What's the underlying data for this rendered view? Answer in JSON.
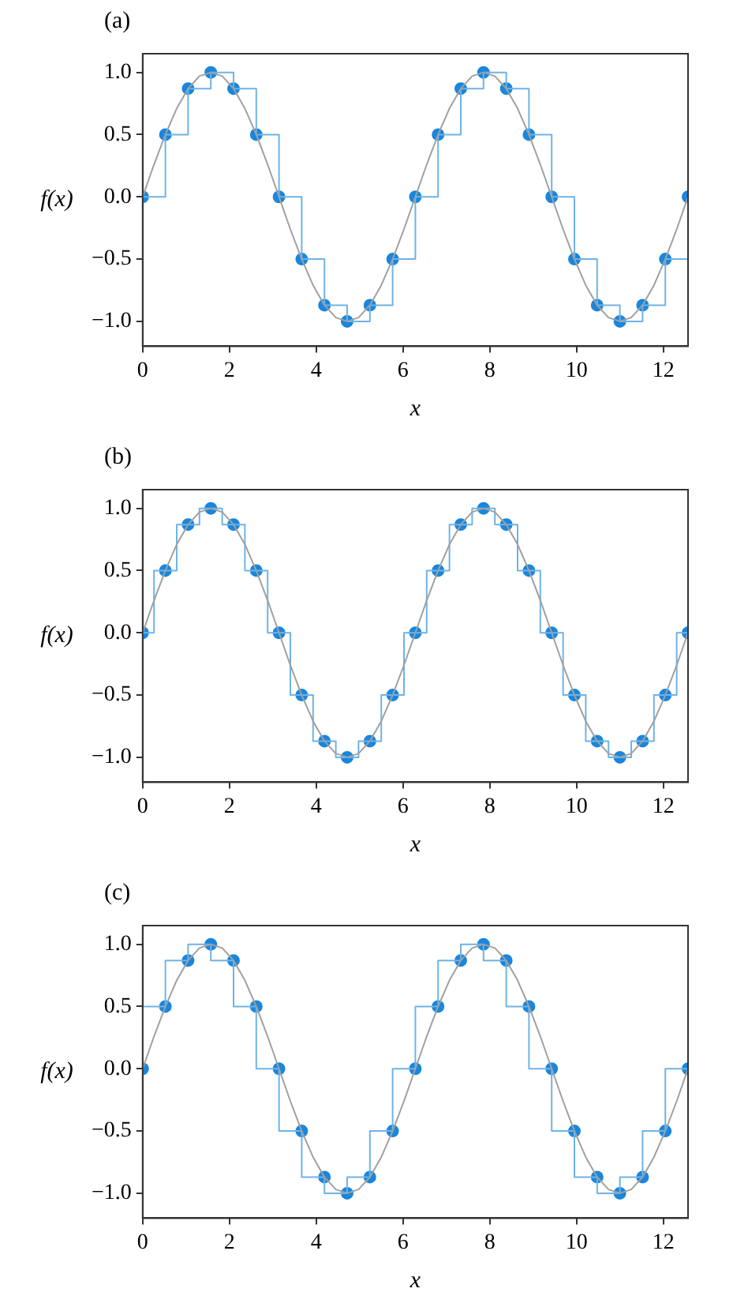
{
  "chart_data": [
    {
      "type": "step",
      "title": "(a)",
      "xlabel": "x",
      "ylabel": "f(x)",
      "xlim": [
        0,
        12.566
      ],
      "ylim": [
        -1.2,
        1.15
      ],
      "xticks": [
        0,
        2,
        4,
        6,
        8,
        10,
        12
      ],
      "yticks": [
        {
          "value": -1,
          "label": "−1.0"
        },
        {
          "value": -0.5,
          "label": "−0.5"
        },
        {
          "value": 0,
          "label": "0.0"
        },
        {
          "value": 0.5,
          "label": "0.5"
        },
        {
          "value": 1,
          "label": "1.0"
        }
      ],
      "grid": false,
      "legend": false,
      "series": [
        {
          "type": "line",
          "color": "#a0a0a0",
          "x": [
            0,
            0.262,
            0.524,
            0.785,
            1.047,
            1.309,
            1.571,
            1.833,
            2.094,
            2.356,
            2.618,
            2.88,
            3.142,
            3.403,
            3.665,
            3.927,
            4.189,
            4.451,
            4.712,
            4.974,
            5.236,
            5.498,
            5.76,
            6.021,
            6.283,
            6.545,
            6.807,
            7.069,
            7.33,
            7.592,
            7.854,
            8.116,
            8.378,
            8.639,
            8.901,
            9.163,
            9.425,
            9.687,
            9.948,
            10.21,
            10.472,
            10.734,
            10.996,
            11.257,
            11.519,
            11.781,
            12.043,
            12.305,
            12.566
          ],
          "values": [
            0,
            0.26,
            0.5,
            0.71,
            0.87,
            0.97,
            1,
            0.97,
            0.87,
            0.71,
            0.5,
            0.26,
            0,
            -0.26,
            -0.5,
            -0.71,
            -0.87,
            -0.97,
            -1,
            -0.97,
            -0.87,
            -0.71,
            -0.5,
            -0.26,
            0,
            0.26,
            0.5,
            0.71,
            0.87,
            0.97,
            1,
            0.97,
            0.87,
            0.71,
            0.5,
            0.26,
            0,
            -0.26,
            -0.5,
            -0.71,
            -0.87,
            -0.97,
            -1,
            -0.97,
            -0.87,
            -0.71,
            -0.5,
            -0.26,
            0
          ]
        },
        {
          "color": "#6fb3e6",
          "x": [
            0,
            0.524,
            1.047,
            1.571,
            2.094,
            2.618,
            3.142,
            3.665,
            4.189,
            4.712,
            5.236,
            5.76,
            6.283,
            6.807,
            7.33,
            7.854,
            8.378,
            8.901,
            9.425,
            9.948,
            10.472,
            10.996,
            11.519,
            12.043,
            12.566
          ],
          "values": [
            0,
            0.5,
            0.87,
            1,
            0.87,
            0.5,
            0,
            -0.5,
            -0.87,
            -1,
            -0.87,
            -0.5,
            0,
            0.5,
            0.87,
            1,
            0.87,
            0.5,
            0,
            -0.5,
            -0.87,
            -1,
            -0.87,
            -0.5,
            0
          ]
        },
        {
          "type": "scatter",
          "marker": "circle",
          "color": "#1a86dc",
          "x": [
            0,
            0.524,
            1.047,
            1.571,
            2.094,
            2.618,
            3.142,
            3.665,
            4.189,
            4.712,
            5.236,
            5.76,
            6.283,
            6.807,
            7.33,
            7.854,
            8.378,
            8.901,
            9.425,
            9.948,
            10.472,
            10.996,
            11.519,
            12.043,
            12.566
          ],
          "values": [
            0,
            0.5,
            0.87,
            1,
            0.87,
            0.5,
            0,
            -0.5,
            -0.87,
            -1,
            -0.87,
            -0.5,
            0,
            0.5,
            0.87,
            1,
            0.87,
            0.5,
            0,
            -0.5,
            -0.87,
            -1,
            -0.87,
            -0.5,
            0
          ]
        }
      ]
    },
    {
      "type": "step",
      "title": "(b)",
      "xlabel": "x",
      "ylabel": "f(x)",
      "xlim": [
        0,
        12.566
      ],
      "ylim": [
        -1.2,
        1.15
      ],
      "xticks": [
        0,
        2,
        4,
        6,
        8,
        10,
        12
      ],
      "yticks": [
        {
          "value": -1,
          "label": "−1.0"
        },
        {
          "value": -0.5,
          "label": "−0.5"
        },
        {
          "value": 0,
          "label": "0.0"
        },
        {
          "value": 0.5,
          "label": "0.5"
        },
        {
          "value": 1,
          "label": "1.0"
        }
      ],
      "grid": false,
      "legend": false,
      "series": [
        {
          "type": "line",
          "color": "#a0a0a0",
          "x": [
            0,
            0.262,
            0.524,
            0.785,
            1.047,
            1.309,
            1.571,
            1.833,
            2.094,
            2.356,
            2.618,
            2.88,
            3.142,
            3.403,
            3.665,
            3.927,
            4.189,
            4.451,
            4.712,
            4.974,
            5.236,
            5.498,
            5.76,
            6.021,
            6.283,
            6.545,
            6.807,
            7.069,
            7.33,
            7.592,
            7.854,
            8.116,
            8.378,
            8.639,
            8.901,
            9.163,
            9.425,
            9.687,
            9.948,
            10.21,
            10.472,
            10.734,
            10.996,
            11.257,
            11.519,
            11.781,
            12.043,
            12.305,
            12.566
          ],
          "values": [
            0,
            0.26,
            0.5,
            0.71,
            0.87,
            0.97,
            1,
            0.97,
            0.87,
            0.71,
            0.5,
            0.26,
            0,
            -0.26,
            -0.5,
            -0.71,
            -0.87,
            -0.97,
            -1,
            -0.97,
            -0.87,
            -0.71,
            -0.5,
            -0.26,
            0,
            0.26,
            0.5,
            0.71,
            0.87,
            0.97,
            1,
            0.97,
            0.87,
            0.71,
            0.5,
            0.26,
            0,
            -0.26,
            -0.5,
            -0.71,
            -0.87,
            -0.97,
            -1,
            -0.97,
            -0.87,
            -0.71,
            -0.5,
            -0.26,
            0
          ]
        },
        {
          "color": "#6fb3e6",
          "x": [
            0,
            0.262,
            0.785,
            1.309,
            1.833,
            2.356,
            2.88,
            3.403,
            3.927,
            4.451,
            4.974,
            5.498,
            6.021,
            6.545,
            7.069,
            7.592,
            8.116,
            8.639,
            9.163,
            9.687,
            10.21,
            10.734,
            11.257,
            11.781,
            12.305,
            12.566
          ],
          "values": [
            0,
            0.5,
            0.87,
            1,
            0.87,
            0.5,
            0,
            -0.5,
            -0.87,
            -1,
            -0.87,
            -0.5,
            0,
            0.5,
            0.87,
            1,
            0.87,
            0.5,
            0,
            -0.5,
            -0.87,
            -1,
            -0.87,
            -0.5,
            0,
            0
          ]
        },
        {
          "type": "scatter",
          "marker": "circle",
          "color": "#1a86dc",
          "x": [
            0,
            0.524,
            1.047,
            1.571,
            2.094,
            2.618,
            3.142,
            3.665,
            4.189,
            4.712,
            5.236,
            5.76,
            6.283,
            6.807,
            7.33,
            7.854,
            8.378,
            8.901,
            9.425,
            9.948,
            10.472,
            10.996,
            11.519,
            12.043,
            12.566
          ],
          "values": [
            0,
            0.5,
            0.87,
            1,
            0.87,
            0.5,
            0,
            -0.5,
            -0.87,
            -1,
            -0.87,
            -0.5,
            0,
            0.5,
            0.87,
            1,
            0.87,
            0.5,
            0,
            -0.5,
            -0.87,
            -1,
            -0.87,
            -0.5,
            0
          ]
        }
      ]
    },
    {
      "type": "step",
      "title": "(c)",
      "xlabel": "x",
      "ylabel": "f(x)",
      "xlim": [
        0,
        12.566
      ],
      "ylim": [
        -1.2,
        1.15
      ],
      "xticks": [
        0,
        2,
        4,
        6,
        8,
        10,
        12
      ],
      "yticks": [
        {
          "value": -1,
          "label": "−1.0"
        },
        {
          "value": -0.5,
          "label": "−0.5"
        },
        {
          "value": 0,
          "label": "0.0"
        },
        {
          "value": 0.5,
          "label": "0.5"
        },
        {
          "value": 1,
          "label": "1.0"
        }
      ],
      "grid": false,
      "legend": false,
      "series": [
        {
          "type": "line",
          "color": "#a0a0a0",
          "x": [
            0,
            0.262,
            0.524,
            0.785,
            1.047,
            1.309,
            1.571,
            1.833,
            2.094,
            2.356,
            2.618,
            2.88,
            3.142,
            3.403,
            3.665,
            3.927,
            4.189,
            4.451,
            4.712,
            4.974,
            5.236,
            5.498,
            5.76,
            6.021,
            6.283,
            6.545,
            6.807,
            7.069,
            7.33,
            7.592,
            7.854,
            8.116,
            8.378,
            8.639,
            8.901,
            9.163,
            9.425,
            9.687,
            9.948,
            10.21,
            10.472,
            10.734,
            10.996,
            11.257,
            11.519,
            11.781,
            12.043,
            12.305,
            12.566
          ],
          "values": [
            0,
            0.26,
            0.5,
            0.71,
            0.87,
            0.97,
            1,
            0.97,
            0.87,
            0.71,
            0.5,
            0.26,
            0,
            -0.26,
            -0.5,
            -0.71,
            -0.87,
            -0.97,
            -1,
            -0.97,
            -0.87,
            -0.71,
            -0.5,
            -0.26,
            0,
            0.26,
            0.5,
            0.71,
            0.87,
            0.97,
            1,
            0.97,
            0.87,
            0.71,
            0.5,
            0.26,
            0,
            -0.26,
            -0.5,
            -0.71,
            -0.87,
            -0.97,
            -1,
            -0.97,
            -0.87,
            -0.71,
            -0.5,
            -0.26,
            0
          ]
        },
        {
          "color": "#6fb3e6",
          "x": [
            0,
            0,
            0.524,
            1.047,
            1.571,
            2.094,
            2.618,
            3.142,
            3.665,
            4.189,
            4.712,
            5.236,
            5.76,
            6.283,
            6.807,
            7.33,
            7.854,
            8.378,
            8.901,
            9.425,
            9.948,
            10.472,
            10.996,
            11.519,
            12.043,
            12.566
          ],
          "values": [
            0,
            0.5,
            0.87,
            1,
            0.87,
            0.5,
            0,
            -0.5,
            -0.87,
            -1,
            -0.87,
            -0.5,
            0,
            0.5,
            0.87,
            1,
            0.87,
            0.5,
            0,
            -0.5,
            -0.87,
            -1,
            -0.87,
            -0.5,
            0,
            0
          ]
        },
        {
          "type": "scatter",
          "marker": "circle",
          "color": "#1a86dc",
          "x": [
            0,
            0.524,
            1.047,
            1.571,
            2.094,
            2.618,
            3.142,
            3.665,
            4.189,
            4.712,
            5.236,
            5.76,
            6.283,
            6.807,
            7.33,
            7.854,
            8.378,
            8.901,
            9.425,
            9.948,
            10.472,
            10.996,
            11.519,
            12.043,
            12.566
          ],
          "values": [
            0,
            0.5,
            0.87,
            1,
            0.87,
            0.5,
            0,
            -0.5,
            -0.87,
            -1,
            -0.87,
            -0.5,
            0,
            0.5,
            0.87,
            1,
            0.87,
            0.5,
            0,
            -0.5,
            -0.87,
            -1,
            -0.87,
            -0.5,
            0
          ]
        }
      ]
    }
  ]
}
